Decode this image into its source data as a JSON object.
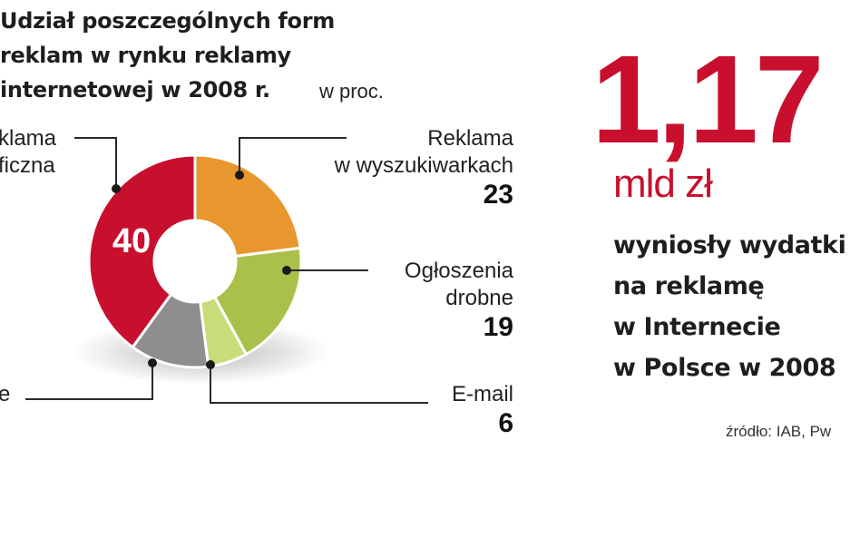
{
  "title_lines": [
    "Udział poszczególnych form",
    "reklam w rynku reklamy",
    "internetowej w 2008 r."
  ],
  "unit": "w proc.",
  "chart_data": {
    "type": "pie",
    "title": "Udział poszczególnych form reklam w rynku reklamy internetowej w 2008 r.",
    "unit": "w proc.",
    "slices": [
      {
        "label_lines": [
          "Reklama",
          "w wyszukiwarkach"
        ],
        "value": 23,
        "color": "#e8962e"
      },
      {
        "label_lines": [
          "Ogłoszenia",
          "drobne"
        ],
        "value": 19,
        "color": "#a9c04a"
      },
      {
        "label_lines": [
          "E-mail"
        ],
        "value": 6,
        "color": "#c8dc7a"
      },
      {
        "label_lines": [
          "e"
        ],
        "value": 12,
        "color": "#8e8e8e"
      },
      {
        "label_lines": [
          "klama",
          "ficzna"
        ],
        "value": 40,
        "color": "#c8102e"
      }
    ],
    "inner_label": "40"
  },
  "headline": {
    "value": "1,17",
    "unit": "mld zł",
    "text_lines": [
      "wyniosły wydatki",
      "na reklamę",
      "w Internecie",
      "w Polsce w 2008"
    ]
  },
  "source": "źródło: IAB, Pw"
}
